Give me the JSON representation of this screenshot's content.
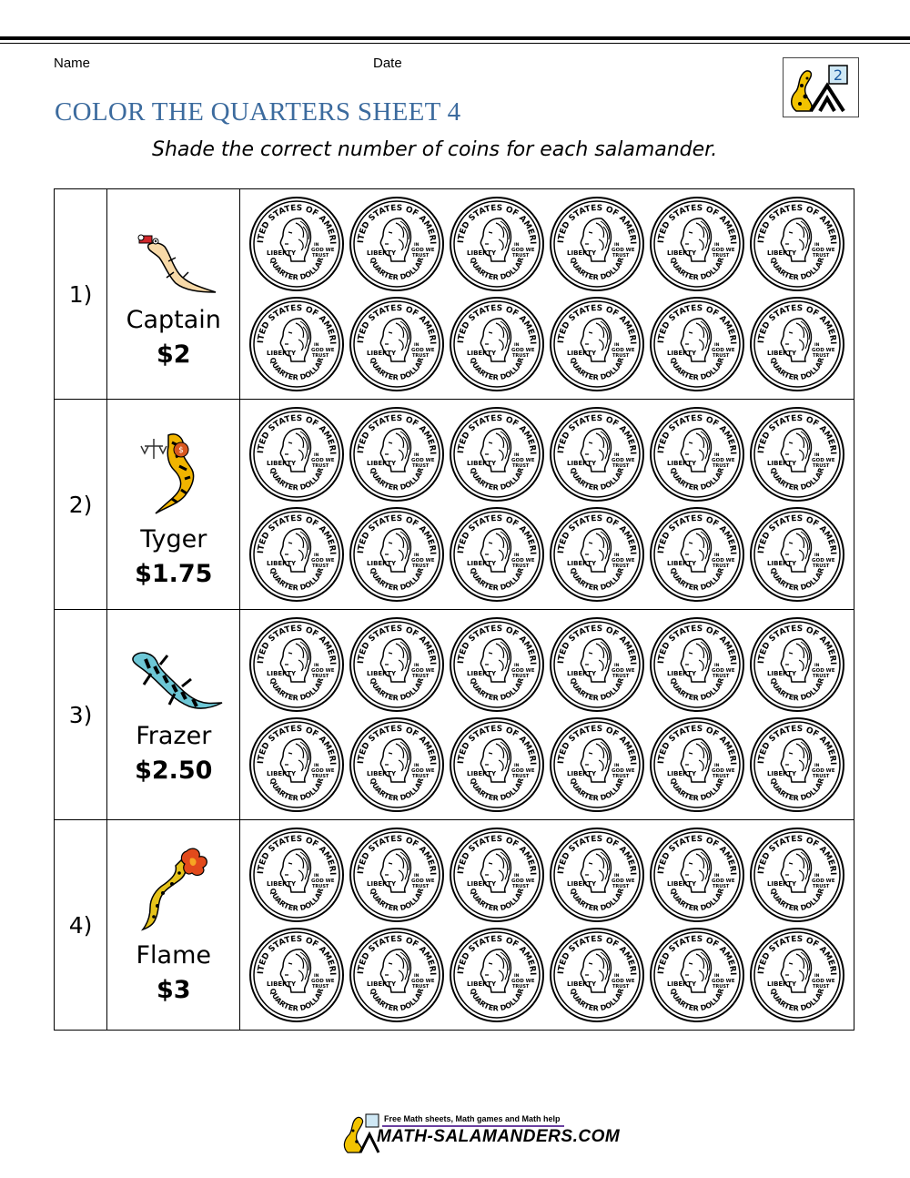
{
  "header": {
    "name_label": "Name",
    "date_label": "Date",
    "logo_grade": "2"
  },
  "title": "COLOR THE QUARTERS SHEET 4",
  "subtitle": "Shade the correct number of coins for each salamander.",
  "coin_text": {
    "top": "UNITED STATES OF AMERICA",
    "bottom": "QUARTER DOLLAR",
    "left": "LIBERTY",
    "motto": "IN GOD WE TRUST"
  },
  "rows": [
    {
      "number": "1)",
      "name": "Captain",
      "price": "$2",
      "salamander": "captain-salamander",
      "coins": 12
    },
    {
      "number": "2)",
      "name": "Tyger",
      "price": "$1.75",
      "salamander": "tyger-salamander",
      "coins": 12
    },
    {
      "number": "3)",
      "name": "Frazer",
      "price": "$2.50",
      "salamander": "frazer-salamander",
      "coins": 12
    },
    {
      "number": "4)",
      "name": "Flame",
      "price": "$3",
      "salamander": "flame-salamander",
      "coins": 12
    }
  ],
  "footer": {
    "tagline": "Free Math sheets, Math games and Math help",
    "site": "MATH-SALAMANDERS.COM"
  }
}
